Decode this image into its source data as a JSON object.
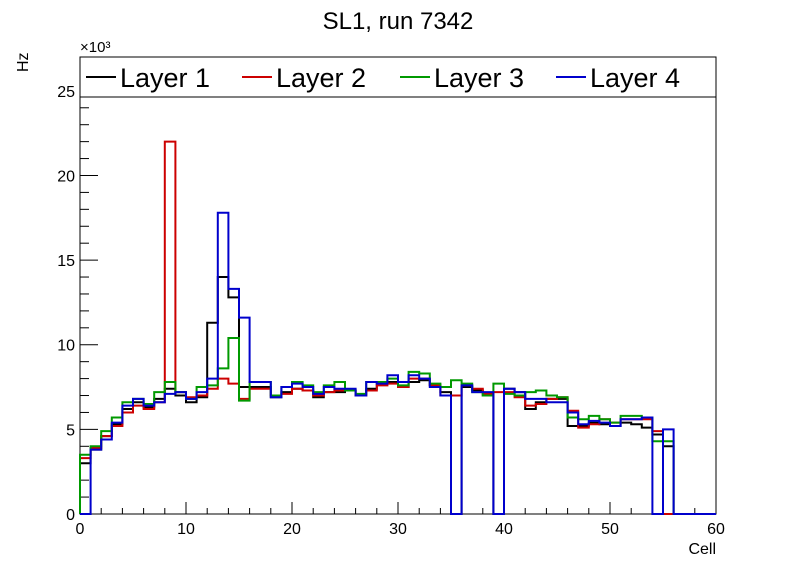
{
  "chart_data": {
    "type": "line",
    "title": "SL1, run 7342",
    "xlabel": "Cell",
    "ylabel": "Hz",
    "y_multiplier": "×10³",
    "xlim": [
      0,
      60
    ],
    "ylim": [
      0,
      27
    ],
    "x_ticks": [
      "0",
      "10",
      "20",
      "30",
      "40",
      "50",
      "60"
    ],
    "y_ticks": [
      "0",
      "5",
      "10",
      "15",
      "20",
      "25"
    ],
    "legend_position": "top, full width",
    "grid": false,
    "bin_edges": [
      0,
      1,
      2,
      3,
      4,
      5,
      6,
      7,
      8,
      9,
      10,
      11,
      12,
      13,
      14,
      15,
      16,
      17,
      18,
      19,
      20,
      21,
      22,
      23,
      24,
      25,
      26,
      27,
      28,
      29,
      30,
      31,
      32,
      33,
      34,
      35,
      36,
      37,
      38,
      39,
      40,
      41,
      42,
      43,
      44,
      45,
      46,
      47,
      48,
      49,
      50,
      51,
      52,
      53,
      54,
      55,
      56,
      57,
      58,
      59,
      60
    ],
    "series": [
      {
        "name": "Layer 1",
        "color": "#000000",
        "values": [
          3.0,
          3.8,
          4.6,
          5.3,
          6.2,
          6.6,
          6.3,
          6.8,
          7.4,
          7.0,
          6.6,
          6.9,
          11.3,
          14.0,
          12.8,
          7.5,
          7.5,
          7.5,
          6.9,
          7.2,
          7.4,
          7.3,
          6.9,
          7.2,
          7.2,
          7.3,
          7.0,
          7.4,
          7.8,
          7.8,
          7.5,
          7.8,
          7.9,
          7.6,
          7.2,
          0,
          7.5,
          7.3,
          7.0,
          0,
          7.4,
          7.2,
          6.2,
          6.6,
          6.8,
          6.8,
          5.2,
          5.2,
          5.4,
          5.3,
          5.2,
          5.4,
          5.3,
          5.1,
          4.7,
          4.0,
          0,
          0,
          0,
          0
        ]
      },
      {
        "name": "Layer 2",
        "color": "#cc0000",
        "values": [
          3.3,
          3.9,
          4.6,
          5.2,
          6.0,
          6.4,
          6.2,
          6.6,
          22.0,
          7.2,
          6.9,
          7.0,
          7.4,
          8.0,
          7.7,
          6.8,
          7.4,
          7.4,
          7.0,
          7.1,
          7.4,
          7.3,
          7.0,
          7.2,
          7.3,
          7.3,
          7.0,
          7.3,
          7.6,
          7.7,
          7.5,
          8.0,
          8.0,
          7.6,
          7.0,
          7.0,
          7.6,
          7.4,
          7.1,
          7.2,
          7.2,
          6.9,
          6.4,
          6.5,
          6.8,
          6.9,
          6.1,
          5.1,
          5.3,
          5.6,
          5.4,
          5.6,
          5.6,
          5.6,
          4.9,
          0,
          0,
          0,
          0,
          0
        ]
      },
      {
        "name": "Layer 3",
        "color": "#009900",
        "values": [
          3.5,
          4.0,
          4.9,
          5.7,
          6.6,
          6.8,
          6.5,
          7.2,
          7.8,
          7.2,
          6.8,
          7.5,
          7.6,
          8.6,
          10.4,
          6.7,
          7.8,
          7.8,
          7.0,
          7.5,
          7.8,
          7.6,
          7.2,
          7.6,
          7.8,
          7.3,
          7.1,
          7.8,
          7.8,
          8.0,
          7.6,
          8.4,
          8.3,
          7.7,
          7.5,
          7.9,
          7.7,
          7.2,
          7.0,
          7.7,
          7.1,
          7.0,
          7.2,
          7.3,
          7.0,
          6.9,
          5.7,
          5.6,
          5.8,
          5.6,
          5.4,
          5.8,
          5.8,
          5.7,
          4.3,
          4.3,
          0,
          0,
          0,
          0
        ]
      },
      {
        "name": "Layer 4",
        "color": "#0000cc",
        "values": [
          0,
          3.8,
          4.4,
          5.4,
          6.4,
          6.8,
          6.4,
          6.6,
          7.1,
          7.2,
          6.8,
          7.2,
          8.0,
          17.8,
          13.3,
          11.6,
          7.8,
          7.8,
          6.9,
          7.5,
          7.7,
          7.5,
          7.1,
          7.5,
          7.4,
          7.4,
          7.0,
          7.8,
          7.7,
          8.2,
          7.8,
          8.2,
          8.0,
          7.5,
          7.0,
          0,
          7.6,
          7.2,
          7.2,
          0,
          7.4,
          7.2,
          6.8,
          6.8,
          6.6,
          6.6,
          6.0,
          5.3,
          5.5,
          5.4,
          5.2,
          5.6,
          5.6,
          5.7,
          0,
          5.0,
          0,
          0,
          0,
          0
        ]
      }
    ]
  }
}
